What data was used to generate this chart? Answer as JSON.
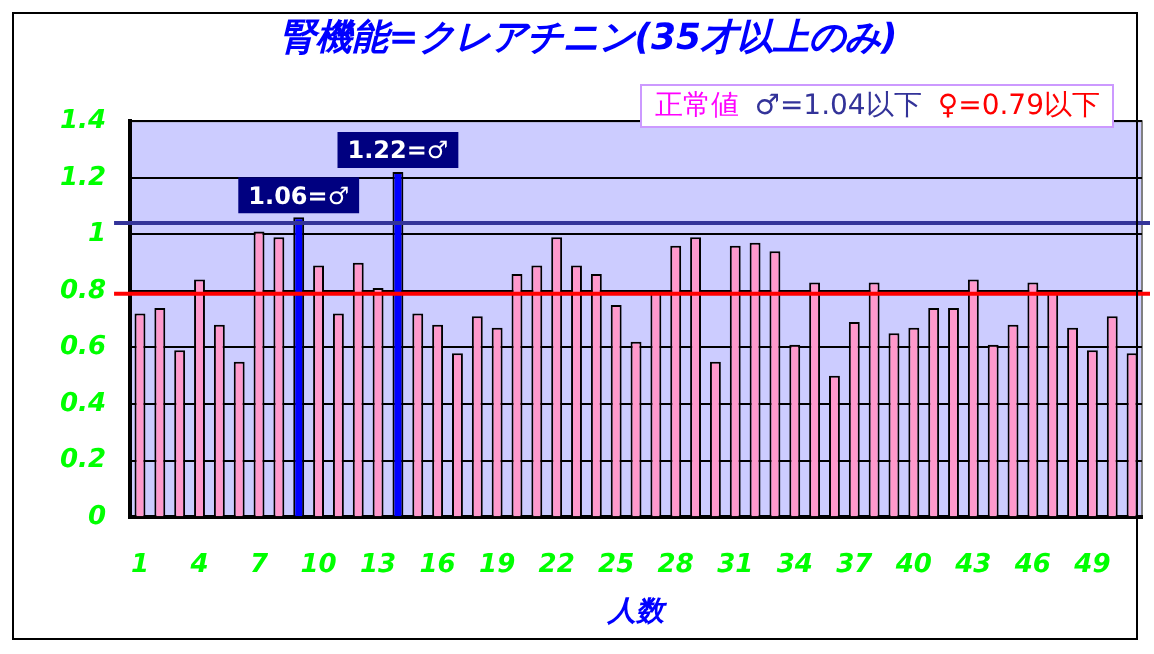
{
  "chart_data": {
    "type": "bar",
    "title": "腎機能=クレアチニン(35才以上のみ)",
    "xlabel": "人数",
    "categories": [
      "1",
      null,
      null,
      "4",
      null,
      null,
      "7",
      null,
      null,
      "10",
      null,
      null,
      "13",
      null,
      null,
      "16",
      null,
      null,
      "19",
      null,
      null,
      "22",
      null,
      null,
      "25",
      null,
      null,
      "28",
      null,
      null,
      "31",
      null,
      null,
      "34",
      null,
      null,
      "37",
      null,
      null,
      "40",
      null,
      null,
      "43",
      null,
      null,
      "46",
      null,
      null,
      "49",
      null,
      null
    ],
    "values": [
      0.72,
      0.74,
      0.59,
      0.84,
      0.68,
      0.55,
      1.01,
      0.99,
      1.06,
      0.89,
      0.72,
      0.9,
      0.81,
      1.22,
      0.72,
      0.68,
      0.58,
      0.71,
      0.67,
      0.86,
      0.89,
      0.99,
      0.89,
      0.86,
      0.75,
      0.62,
      0.8,
      0.96,
      0.99,
      0.55,
      0.96,
      0.97,
      0.94,
      0.61,
      0.83,
      0.5,
      0.69,
      0.83,
      0.65,
      0.67,
      0.74,
      0.74,
      0.84,
      0.61,
      0.68,
      0.83,
      0.8,
      0.67,
      0.59,
      0.71,
      0.58
    ],
    "colors": [
      "#ff99cc",
      "#ff99cc",
      "#ff99cc",
      "#ff99cc",
      "#ff99cc",
      "#ff99cc",
      "#ff99cc",
      "#ff99cc",
      "#0000ff",
      "#ff99cc",
      "#ff99cc",
      "#ff99cc",
      "#ff99cc",
      "#0000ff",
      "#ff99cc",
      "#ff99cc",
      "#ff99cc",
      "#ff99cc",
      "#ff99cc",
      "#ff99cc",
      "#ff99cc",
      "#ff99cc",
      "#ff99cc",
      "#ff99cc",
      "#ff99cc",
      "#ff99cc",
      "#ff99cc",
      "#ff99cc",
      "#ff99cc",
      "#ff99cc",
      "#ff99cc",
      "#ff99cc",
      "#ff99cc",
      "#ff99cc",
      "#ff99cc",
      "#ff99cc",
      "#ff99cc",
      "#ff99cc",
      "#ff99cc",
      "#ff99cc",
      "#ff99cc",
      "#ff99cc",
      "#ff99cc",
      "#ff99cc",
      "#ff99cc",
      "#ff99cc",
      "#ff99cc",
      "#ff99cc",
      "#ff99cc",
      "#ff99cc",
      "#ff99cc"
    ],
    "value_labels": [
      null,
      null,
      null,
      null,
      null,
      null,
      null,
      null,
      "1.06=♂",
      null,
      null,
      null,
      null,
      "1.22=♂",
      null,
      null,
      null,
      null,
      null,
      null,
      null,
      null,
      null,
      null,
      null,
      null,
      null,
      null,
      null,
      null,
      null,
      null,
      null,
      null,
      null,
      null,
      null,
      null,
      null,
      null,
      null,
      null,
      null,
      null,
      null,
      null,
      null,
      null,
      null,
      null,
      null
    ],
    "ylim": [
      0,
      1.4
    ],
    "yticks": [
      0,
      0.2,
      0.4,
      0.6,
      0.8,
      1,
      1.2,
      1.4
    ],
    "grid": "y",
    "ref_lines": [
      {
        "axis": "y",
        "value": 1.04,
        "label": "♂=1.04以下",
        "color": "#333399"
      },
      {
        "axis": "y",
        "value": 0.79,
        "label": "♀=0.79以下",
        "color": "#ff0000"
      }
    ],
    "annotations": [
      "正常値"
    ]
  }
}
